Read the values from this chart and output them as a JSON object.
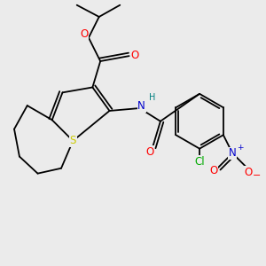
{
  "bg_color": "#ebebeb",
  "atom_colors": {
    "C": "#000000",
    "O": "#ff0000",
    "N": "#0000cc",
    "S": "#cccc00",
    "Cl": "#00aa00",
    "H": "#008080"
  },
  "bond_color": "#000000"
}
